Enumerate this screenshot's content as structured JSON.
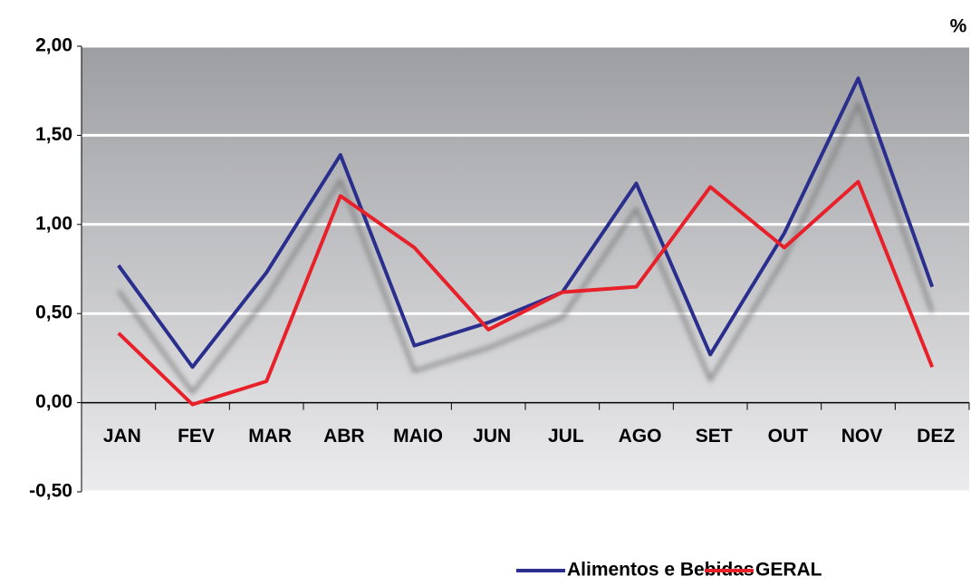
{
  "chart_data": {
    "type": "line",
    "y_unit": "%",
    "categories": [
      "JAN",
      "FEV",
      "MAR",
      "ABR",
      "MAIO",
      "JUN",
      "JUL",
      "AGO",
      "SET",
      "OUT",
      "NOV",
      "DEZ"
    ],
    "series": [
      {
        "name": "Alimentos e Bebidas",
        "color": "#2b2e8c",
        "values": [
          0.77,
          0.2,
          0.73,
          1.39,
          0.32,
          0.45,
          0.62,
          1.23,
          0.27,
          0.95,
          1.82,
          0.65
        ]
      },
      {
        "name": "GERAL",
        "color": "#e8202a",
        "values": [
          0.39,
          -0.01,
          0.12,
          1.16,
          0.87,
          0.41,
          0.62,
          0.65,
          1.21,
          0.87,
          1.24,
          0.2
        ]
      }
    ],
    "ylim": [
      -0.5,
      2.0
    ],
    "yticks": [
      {
        "value": -0.5,
        "label": "-0,50"
      },
      {
        "value": 0,
        "label": "0,00"
      },
      {
        "value": 0.5,
        "label": "0,50"
      },
      {
        "value": 1.0,
        "label": "1,00"
      },
      {
        "value": 1.5,
        "label": "1,50"
      },
      {
        "value": 2.0,
        "label": "2,00"
      }
    ],
    "grid": true
  }
}
